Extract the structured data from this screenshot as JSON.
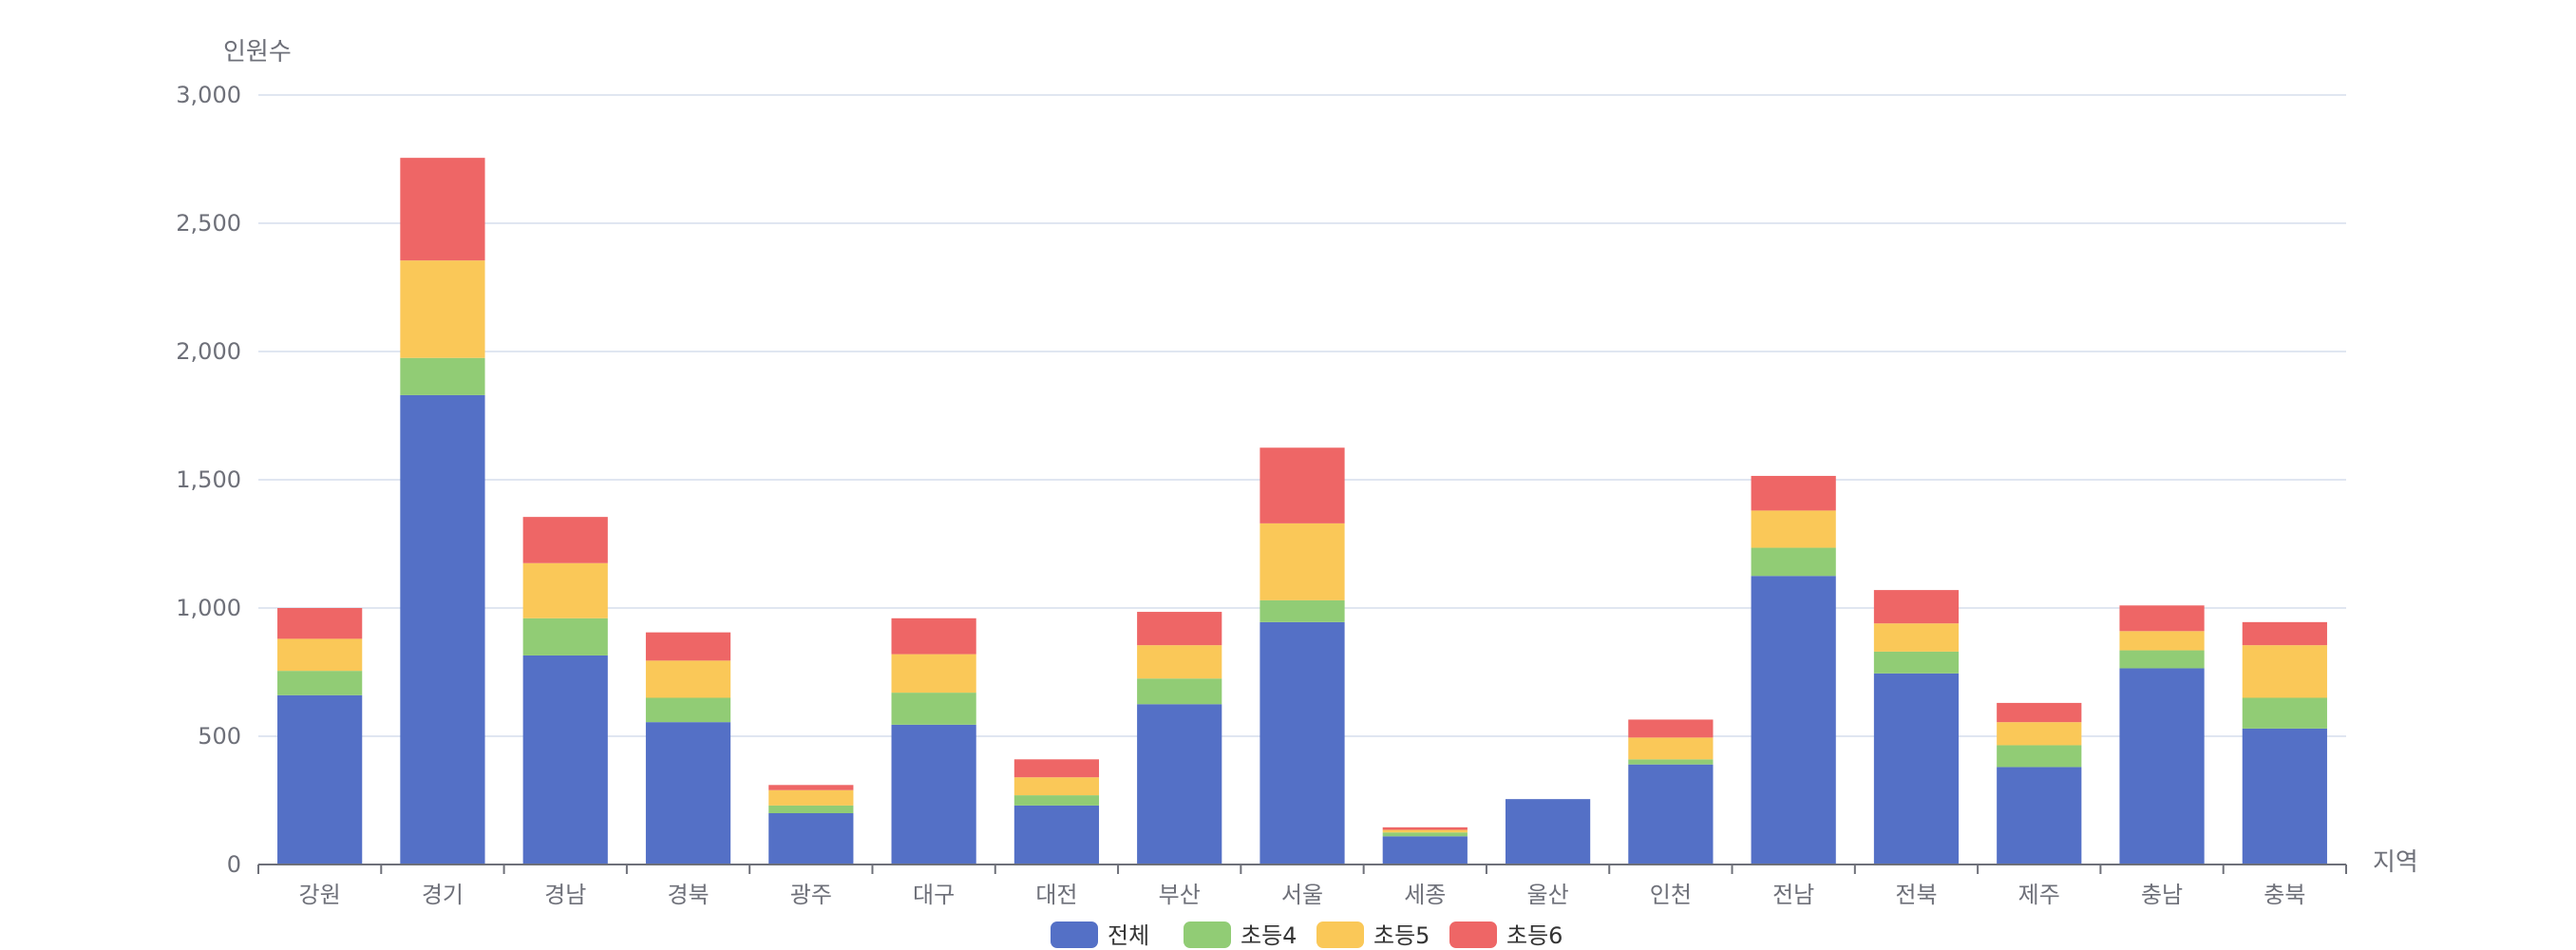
{
  "chart_data": {
    "type": "bar",
    "stacked": true,
    "title": "",
    "xlabel": "지역",
    "ylabel": "인원수",
    "ylim": [
      0,
      3000
    ],
    "yticks": [
      0,
      500,
      1000,
      1500,
      2000,
      2500,
      3000
    ],
    "ytick_labels": [
      "0",
      "500",
      "1,000",
      "1,500",
      "2,000",
      "2,500",
      "3,000"
    ],
    "grid": true,
    "legend_position": "bottom-center",
    "categories": [
      "강원",
      "경기",
      "경남",
      "경북",
      "광주",
      "대구",
      "대전",
      "부산",
      "서울",
      "세종",
      "울산",
      "인천",
      "전남",
      "전북",
      "제주",
      "충남",
      "충북"
    ],
    "series": [
      {
        "name": "전체",
        "color": "#5470c6",
        "values": [
          660,
          1830,
          815,
          555,
          200,
          545,
          230,
          625,
          945,
          110,
          255,
          390,
          1125,
          745,
          380,
          765,
          530
        ]
      },
      {
        "name": "초등4",
        "color": "#91cc75",
        "values": [
          95,
          145,
          145,
          95,
          30,
          125,
          40,
          100,
          85,
          15,
          0,
          20,
          110,
          85,
          85,
          70,
          120
        ]
      },
      {
        "name": "초등5",
        "color": "#fac858",
        "values": [
          125,
          380,
          215,
          145,
          60,
          150,
          70,
          130,
          300,
          10,
          0,
          85,
          145,
          110,
          90,
          75,
          205
        ]
      },
      {
        "name": "초등6",
        "color": "#ee6666",
        "values": [
          120,
          400,
          180,
          110,
          20,
          140,
          70,
          130,
          295,
          10,
          0,
          70,
          135,
          130,
          75,
          100,
          90
        ]
      }
    ]
  }
}
